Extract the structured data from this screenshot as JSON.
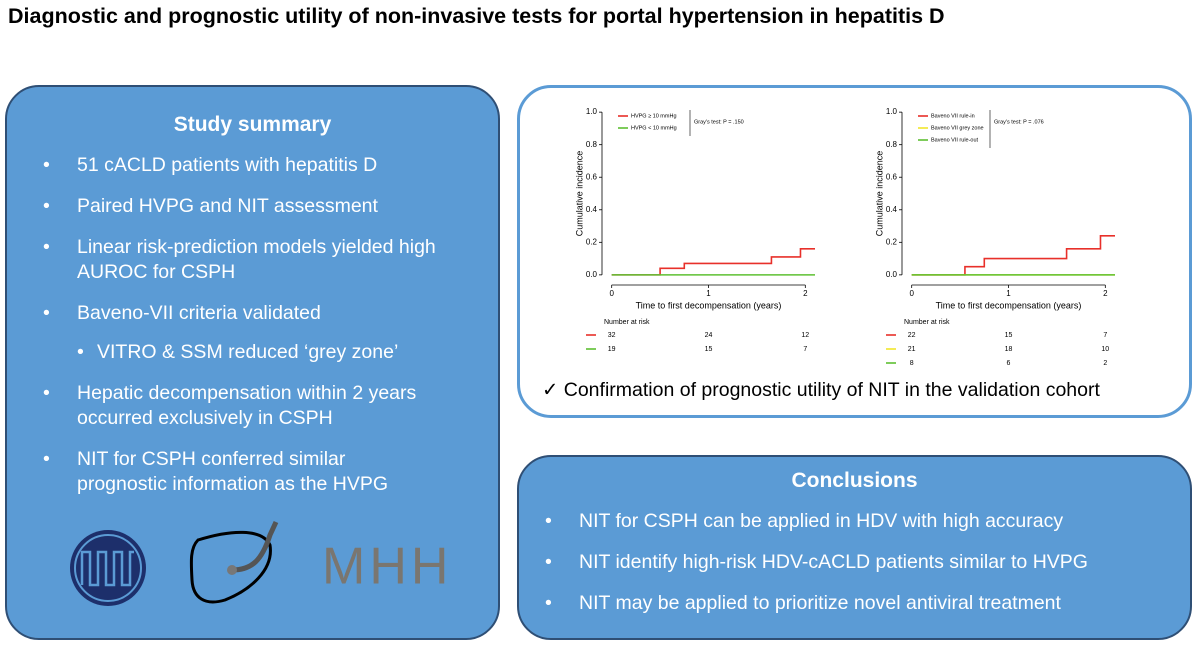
{
  "title": "Diagnostic and prognostic utility of non-invasive tests for portal hypertension in hepatitis D",
  "summary": {
    "heading": "Study summary",
    "items": [
      {
        "text": "51 cACLD patients with hepatitis D"
      },
      {
        "text": "Paired HVPG and NIT assessment"
      },
      {
        "text": "Linear risk-prediction models yielded high AUROC for CSPH"
      },
      {
        "text": "Baveno-VII criteria validated",
        "sub": [
          "VITRO & SSM reduced ‘grey zone’"
        ]
      },
      {
        "text": "Hepatic decompensation within 2 years occurred exclusively in CSPH"
      },
      {
        "text": "NIT for CSPH conferred similar prognostic information as the HVPG"
      }
    ]
  },
  "logo_text": "MHH",
  "validation_note": "✓ Confirmation of prognostic utility of NIT in the validation cohort",
  "conclusions": {
    "heading": "Conclusions",
    "items": [
      "NIT for CSPH can be applied in HDV with high accuracy",
      "NIT identify high-risk HDV-cACLD patients similar to HVPG",
      "NIT may be applied to prioritize novel antiviral treatment"
    ]
  },
  "chart_data": [
    {
      "type": "step",
      "x_label": "Time to first decompensation (years)",
      "y_label": "Cumulative incidence",
      "xlim": [
        -0.1,
        2.1
      ],
      "xticks": [
        0,
        1,
        2
      ],
      "ylim": [
        -0.05,
        1.05
      ],
      "yticks": [
        {
          "value": 0,
          "label": "0.0"
        },
        {
          "value": 0.2,
          "label": "0.2"
        },
        {
          "value": 0.4,
          "label": "0.4"
        },
        {
          "value": 0.6,
          "label": "0.6"
        },
        {
          "value": 0.8,
          "label": "0.8"
        },
        {
          "value": 1,
          "label": "1.0"
        }
      ],
      "annotation": "Gray's test: P = .150",
      "risk_title": "Number at risk",
      "series": [
        {
          "name": "HVPG ≥ 10 mmHg",
          "color": "#e8302a",
          "x": [
            0,
            0.5,
            0.75,
            1.65,
            1.95,
            2.1
          ],
          "values": [
            0,
            0.04,
            0.07,
            0.11,
            0.16,
            0.16
          ],
          "at_risk": [
            32,
            24,
            12
          ]
        },
        {
          "name": "HVPG < 10 mmHg",
          "color": "#5ec032",
          "x": [
            0,
            2.1
          ],
          "values": [
            0,
            0
          ],
          "at_risk": [
            19,
            15,
            7
          ]
        }
      ]
    },
    {
      "type": "step",
      "x_label": "Time to first decompensation (years)",
      "y_label": "Cumulative incidence",
      "xlim": [
        -0.1,
        2.1
      ],
      "xticks": [
        0,
        1,
        2
      ],
      "ylim": [
        -0.05,
        1.05
      ],
      "yticks": [
        {
          "value": 0,
          "label": "0.0"
        },
        {
          "value": 0.2,
          "label": "0.2"
        },
        {
          "value": 0.4,
          "label": "0.4"
        },
        {
          "value": 0.6,
          "label": "0.6"
        },
        {
          "value": 0.8,
          "label": "0.8"
        },
        {
          "value": 1,
          "label": "1.0"
        }
      ],
      "annotation": "Gray's test: P = .076",
      "risk_title": "Number at risk",
      "series": [
        {
          "name": "Baveno VII rule-in",
          "color": "#e8302a",
          "x": [
            0,
            0.55,
            0.75,
            1.6,
            1.95,
            2.1
          ],
          "values": [
            0,
            0.05,
            0.1,
            0.16,
            0.24,
            0.24
          ],
          "at_risk": [
            22,
            15,
            7
          ]
        },
        {
          "name": "Baveno VII grey zone",
          "color": "#f2e62c",
          "x": [
            0,
            2.1
          ],
          "values": [
            0,
            0
          ],
          "at_risk": [
            21,
            18,
            10
          ]
        },
        {
          "name": "Baveno VII rule-out",
          "color": "#5ec032",
          "x": [
            0,
            2.1
          ],
          "values": [
            0,
            0
          ],
          "at_risk": [
            8,
            6,
            2
          ]
        }
      ]
    }
  ]
}
